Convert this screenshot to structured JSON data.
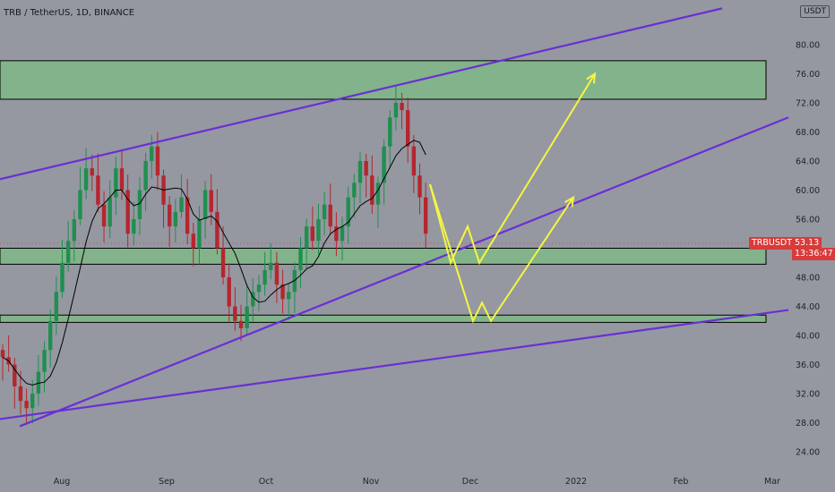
{
  "header": {
    "title": "TRB / TetherUS, 1D, BINANCE",
    "currency": "USDT"
  },
  "price_tag": {
    "symbol": "TRBUSDT",
    "price": "53.13",
    "countdown": "13:36:47"
  },
  "colors": {
    "background": "#9598a1",
    "channel": "#6a2fd4",
    "zone_fill": "#7fb786",
    "arrows": "#f5f542",
    "bull": "#1e8f4f",
    "bear": "#b5262f",
    "ma": "#000000",
    "price_tag": "#d93a3a"
  },
  "chart_data": {
    "type": "candlestick",
    "title": "TRB / TetherUS, 1D, BINANCE",
    "yticks": [
      24,
      28,
      32,
      36,
      40,
      44,
      48,
      52,
      56,
      60,
      64,
      68,
      72,
      76,
      80
    ],
    "ytick_labels": [
      "24.00",
      "28.00",
      "32.00",
      "36.00",
      "40.00",
      "44.00",
      "48.00",
      "52.00",
      "56.00",
      "60.00",
      "64.00",
      "68.00",
      "72.00",
      "76.00",
      "80.00"
    ],
    "xticks": [
      "Aug",
      "Sep",
      "Oct",
      "Nov",
      "Dec",
      "2022",
      "Feb",
      "Mar"
    ],
    "ylim": [
      21.5,
      84
    ],
    "last_price": 53.13,
    "close_path": [
      37,
      36,
      33,
      31,
      30,
      32,
      35,
      38,
      42,
      46,
      50,
      53,
      56,
      60,
      63,
      62,
      58,
      55,
      59,
      63,
      60,
      54,
      56,
      60,
      64,
      66,
      62,
      58,
      55,
      57,
      59,
      54,
      52,
      56,
      60,
      57,
      52,
      48,
      44,
      42,
      41,
      44,
      46,
      47,
      49,
      50,
      47,
      45,
      46,
      49,
      52,
      55,
      53,
      56,
      58,
      55,
      53,
      55,
      59,
      61,
      64,
      62,
      58,
      61,
      66,
      70,
      72,
      71,
      66,
      62,
      59,
      54
    ],
    "zones": [
      {
        "low": 72.5,
        "high": 77.8
      },
      {
        "low": 49.8,
        "high": 52.0
      },
      {
        "low": 41.8,
        "high": 42.8
      }
    ],
    "trendlines": [
      {
        "name": "upper channel",
        "from": [
          "Jul",
          61.5
        ],
        "to": [
          "Mar",
          85
        ]
      },
      {
        "name": "middle channel",
        "from": [
          "Jul",
          27.5
        ],
        "to": [
          "Mar",
          70
        ]
      },
      {
        "name": "lower channel",
        "from": [
          "Jul",
          28.5
        ],
        "to": [
          "Mar",
          43.5
        ]
      }
    ],
    "projections": [
      {
        "name": "upper scenario",
        "points": [
          60.8,
          50,
          55,
          50,
          76
        ]
      },
      {
        "name": "lower scenario",
        "points": [
          60.8,
          42,
          44.5,
          42,
          59
        ]
      }
    ]
  }
}
